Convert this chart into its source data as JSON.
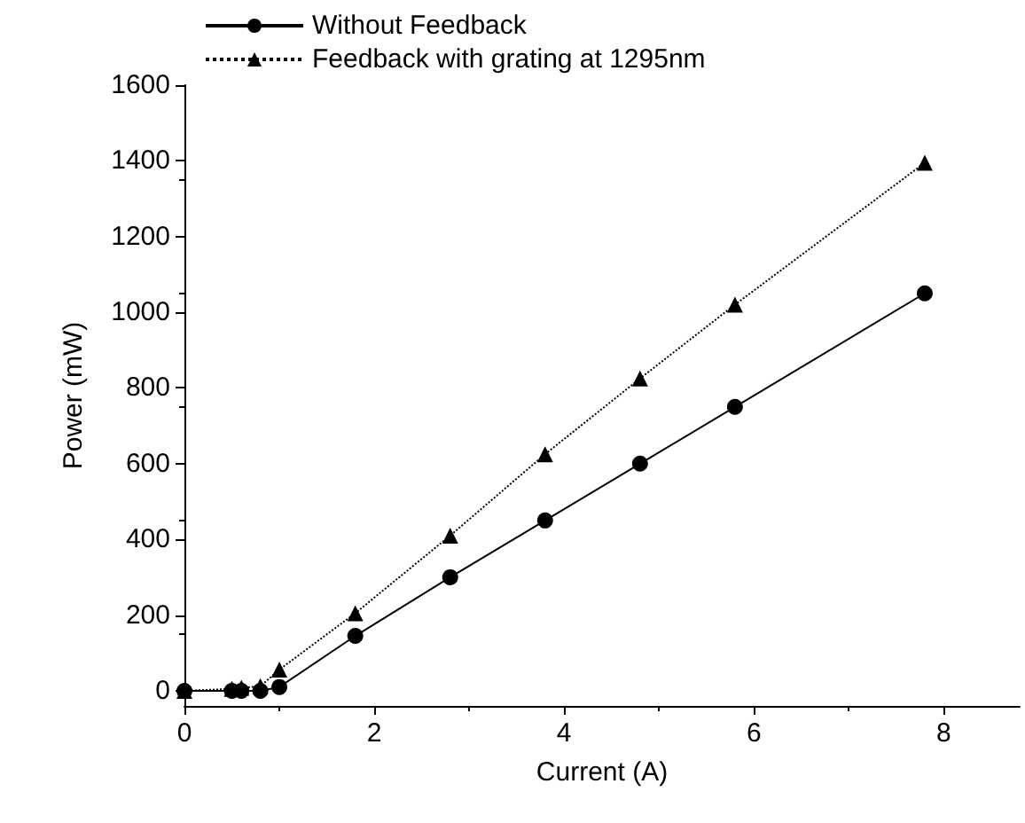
{
  "chart_data": {
    "type": "line",
    "xlabel": "Current (A)",
    "ylabel": "Power (mW)",
    "xlim": [
      0,
      8.8
    ],
    "xticks": [
      0,
      2,
      4,
      6,
      8
    ],
    "ylim": [
      -40,
      1600
    ],
    "yticks": [
      0,
      200,
      400,
      600,
      800,
      1000,
      1200,
      1400,
      1600
    ],
    "grid": false,
    "legend": "top",
    "series": [
      {
        "name": "Without Feedback",
        "color": "#000000",
        "marker": "circle",
        "line_style": "solid",
        "x": [
          0,
          0.5,
          0.6,
          0.8,
          1,
          1.8,
          2.8,
          3.8,
          4.8,
          5.8,
          7.8
        ],
        "values": [
          0,
          0,
          0,
          0,
          10,
          145,
          300,
          450,
          600,
          750,
          1050
        ]
      },
      {
        "name": "Feedback with grating at 1295nm",
        "color": "#000000",
        "marker": "triangle",
        "line_style": "dotted",
        "x": [
          0,
          0.5,
          0.6,
          0.8,
          1,
          1.8,
          2.8,
          3.8,
          4.8,
          5.8,
          7.8
        ],
        "values": [
          0,
          5,
          8,
          12,
          56,
          205,
          410,
          625,
          825,
          1020,
          1395
        ]
      }
    ]
  }
}
